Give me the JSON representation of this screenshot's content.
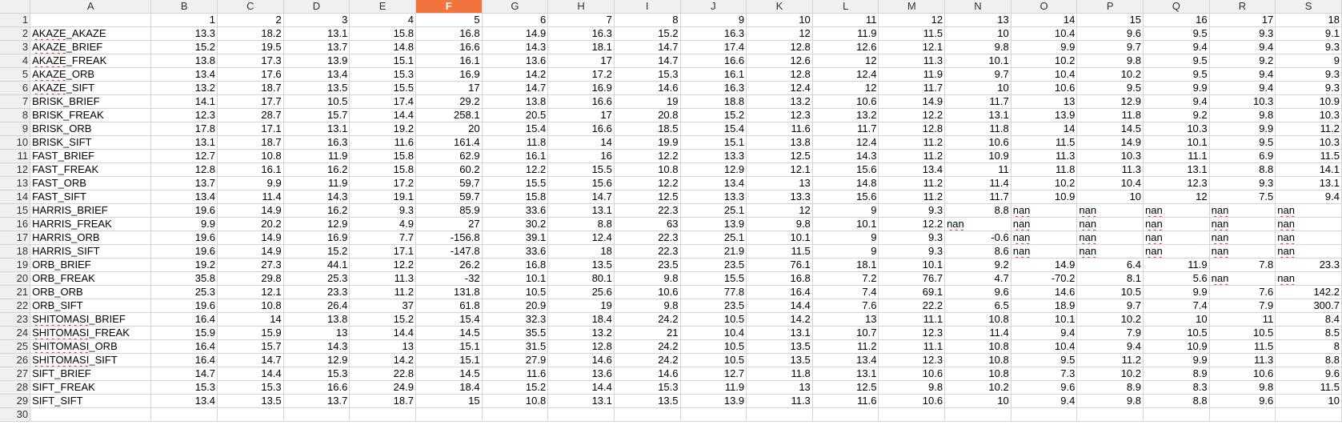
{
  "columns": [
    "A",
    "B",
    "C",
    "D",
    "E",
    "F",
    "G",
    "H",
    "I",
    "J",
    "K",
    "L",
    "M",
    "N",
    "O",
    "P",
    "Q",
    "R",
    "S"
  ],
  "active_column": "F",
  "row_numbers": [
    "1",
    "2",
    "3",
    "4",
    "5",
    "6",
    "7",
    "8",
    "9",
    "10",
    "11",
    "12",
    "13",
    "14",
    "15",
    "16",
    "17",
    "18",
    "19",
    "20",
    "21",
    "22",
    "23",
    "24",
    "25",
    "26",
    "27",
    "28",
    "29",
    "30"
  ],
  "header_row": [
    "",
    "1",
    "2",
    "3",
    "4",
    "5",
    "6",
    "7",
    "8",
    "9",
    "10",
    "11",
    "12",
    "13",
    "14",
    "15",
    "16",
    "17",
    "18"
  ],
  "rows": [
    [
      "AKAZE_AKAZE",
      "13.3",
      "18.2",
      "13.1",
      "15.8",
      "16.8",
      "14.9",
      "16.3",
      "15.2",
      "16.3",
      "12",
      "11.9",
      "11.5",
      "10",
      "10.4",
      "9.6",
      "9.5",
      "9.3",
      "9.1"
    ],
    [
      "AKAZE_BRIEF",
      "15.2",
      "19.5",
      "13.7",
      "14.8",
      "16.6",
      "14.3",
      "18.1",
      "14.7",
      "17.4",
      "12.8",
      "12.6",
      "12.1",
      "9.8",
      "9.9",
      "9.7",
      "9.4",
      "9.4",
      "9.3"
    ],
    [
      "AKAZE_FREAK",
      "13.8",
      "17.3",
      "13.9",
      "15.1",
      "16.1",
      "13.6",
      "17",
      "14.7",
      "16.6",
      "12.6",
      "12",
      "11.3",
      "10.1",
      "10.2",
      "9.8",
      "9.5",
      "9.2",
      "9"
    ],
    [
      "AKAZE_ORB",
      "13.4",
      "17.6",
      "13.4",
      "15.3",
      "16.9",
      "14.2",
      "17.2",
      "15.3",
      "16.1",
      "12.8",
      "12.4",
      "11.9",
      "9.7",
      "10.4",
      "10.2",
      "9.5",
      "9.4",
      "9.3"
    ],
    [
      "AKAZE_SIFT",
      "13.2",
      "18.7",
      "13.5",
      "15.5",
      "17",
      "14.7",
      "16.9",
      "14.6",
      "16.3",
      "12.4",
      "12",
      "11.7",
      "10",
      "10.6",
      "9.5",
      "9.9",
      "9.4",
      "9.3"
    ],
    [
      "BRISK_BRIEF",
      "14.1",
      "17.7",
      "10.5",
      "17.4",
      "29.2",
      "13.8",
      "16.6",
      "19",
      "18.8",
      "13.2",
      "10.6",
      "14.9",
      "11.7",
      "13",
      "12.9",
      "9.4",
      "10.3",
      "10.9"
    ],
    [
      "BRISK_FREAK",
      "12.3",
      "28.7",
      "15.7",
      "14.4",
      "258.1",
      "20.5",
      "17",
      "20.8",
      "15.2",
      "12.3",
      "13.2",
      "12.2",
      "13.1",
      "13.9",
      "11.8",
      "9.2",
      "9.8",
      "10.3"
    ],
    [
      "BRISK_ORB",
      "17.8",
      "17.1",
      "13.1",
      "19.2",
      "20",
      "15.4",
      "16.6",
      "18.5",
      "15.4",
      "11.6",
      "11.7",
      "12.8",
      "11.8",
      "14",
      "14.5",
      "10.3",
      "9.9",
      "11.2"
    ],
    [
      "BRISK_SIFT",
      "13.1",
      "18.7",
      "16.3",
      "11.6",
      "161.4",
      "11.8",
      "14",
      "19.9",
      "15.1",
      "13.8",
      "12.4",
      "11.2",
      "10.6",
      "11.5",
      "14.9",
      "10.1",
      "9.5",
      "10.3"
    ],
    [
      "FAST_BRIEF",
      "12.7",
      "10.8",
      "11.9",
      "15.8",
      "62.9",
      "16.1",
      "16",
      "12.2",
      "13.3",
      "12.5",
      "14.3",
      "11.2",
      "10.9",
      "11.3",
      "10.3",
      "11.1",
      "6.9",
      "11.5"
    ],
    [
      "FAST_FREAK",
      "12.8",
      "16.1",
      "16.2",
      "15.8",
      "60.2",
      "12.2",
      "15.5",
      "10.8",
      "12.9",
      "12.1",
      "15.6",
      "13.4",
      "11",
      "11.8",
      "11.3",
      "13.1",
      "8.8",
      "14.1"
    ],
    [
      "FAST_ORB",
      "13.7",
      "9.9",
      "11.9",
      "17.2",
      "59.7",
      "15.5",
      "15.6",
      "12.2",
      "13.4",
      "13",
      "14.8",
      "11.2",
      "11.4",
      "10.2",
      "10.4",
      "12.3",
      "9.3",
      "13.1"
    ],
    [
      "FAST_SIFT",
      "13.4",
      "11.4",
      "14.3",
      "19.1",
      "59.7",
      "15.8",
      "14.7",
      "12.5",
      "13.3",
      "13.3",
      "15.6",
      "11.2",
      "11.7",
      "10.9",
      "10",
      "12",
      "7.5",
      "9.4"
    ],
    [
      "HARRIS_BRIEF",
      "19.6",
      "14.9",
      "16.2",
      "9.3",
      "85.9",
      "33.6",
      "13.1",
      "22.3",
      "25.1",
      "12",
      "9",
      "9.3",
      "8.8",
      "nan",
      "nan",
      "nan",
      "nan",
      "nan"
    ],
    [
      "HARRIS_FREAK",
      "9.9",
      "20.2",
      "12.9",
      "4.9",
      "27",
      "30.2",
      "8.8",
      "63",
      "13.9",
      "9.8",
      "10.1",
      "12.2",
      "nan",
      "nan",
      "nan",
      "nan",
      "nan",
      "nan"
    ],
    [
      "HARRIS_ORB",
      "19.6",
      "14.9",
      "16.9",
      "7.7",
      "-156.8",
      "39.1",
      "12.4",
      "22.3",
      "25.1",
      "10.1",
      "9",
      "9.3",
      "-0.6",
      "nan",
      "nan",
      "nan",
      "nan",
      "nan"
    ],
    [
      "HARRIS_SIFT",
      "19.6",
      "14.9",
      "15.2",
      "17.1",
      "-147.8",
      "33.6",
      "18",
      "22.3",
      "21.9",
      "11.5",
      "9",
      "9.3",
      "8.6",
      "nan",
      "nan",
      "nan",
      "nan",
      "nan"
    ],
    [
      "ORB_BRIEF",
      "19.2",
      "27.3",
      "44.1",
      "12.2",
      "26.2",
      "16.8",
      "13.5",
      "23.5",
      "23.5",
      "76.1",
      "18.1",
      "10.1",
      "9.2",
      "14.9",
      "6.4",
      "11.9",
      "7.8",
      "23.3"
    ],
    [
      "ORB_FREAK",
      "35.8",
      "29.8",
      "25.3",
      "11.3",
      "-32",
      "10.1",
      "80.1",
      "9.8",
      "15.5",
      "16.8",
      "7.2",
      "76.7",
      "4.7",
      "-70.2",
      "8.1",
      "5.6",
      "nan",
      "nan"
    ],
    [
      "ORB_ORB",
      "25.3",
      "12.1",
      "23.3",
      "11.2",
      "131.8",
      "10.5",
      "25.6",
      "10.6",
      "77.8",
      "16.4",
      "7.4",
      "69.1",
      "9.6",
      "14.6",
      "10.5",
      "9.9",
      "7.6",
      "142.2"
    ],
    [
      "ORB_SIFT",
      "19.6",
      "10.8",
      "26.4",
      "37",
      "61.8",
      "20.9",
      "19",
      "9.8",
      "23.5",
      "14.4",
      "7.6",
      "22.2",
      "6.5",
      "18.9",
      "9.7",
      "7.4",
      "7.9",
      "300.7"
    ],
    [
      "SHITOMASI_BRIEF",
      "16.4",
      "14",
      "13.8",
      "15.2",
      "15.4",
      "32.3",
      "18.4",
      "24.2",
      "10.5",
      "14.2",
      "13",
      "11.1",
      "10.8",
      "10.1",
      "10.2",
      "10",
      "11",
      "8.4"
    ],
    [
      "SHITOMASI_FREAK",
      "15.9",
      "15.9",
      "13",
      "14.4",
      "14.5",
      "35.5",
      "13.2",
      "21",
      "10.4",
      "13.1",
      "10.7",
      "12.3",
      "11.4",
      "9.4",
      "7.9",
      "10.5",
      "10.5",
      "8.5"
    ],
    [
      "SHITOMASI_ORB",
      "16.4",
      "15.7",
      "14.3",
      "13",
      "15.1",
      "31.5",
      "12.8",
      "24.2",
      "10.5",
      "13.5",
      "11.2",
      "11.1",
      "10.8",
      "10.4",
      "9.4",
      "10.9",
      "11.5",
      "8"
    ],
    [
      "SHITOMASI_SIFT",
      "16.4",
      "14.7",
      "12.9",
      "14.2",
      "15.1",
      "27.9",
      "14.6",
      "24.2",
      "10.5",
      "13.5",
      "13.4",
      "12.3",
      "10.8",
      "9.5",
      "11.2",
      "9.9",
      "11.3",
      "8.8"
    ],
    [
      "SIFT_BRIEF",
      "14.7",
      "14.4",
      "15.3",
      "22.8",
      "14.5",
      "11.6",
      "13.6",
      "14.6",
      "12.7",
      "11.8",
      "13.1",
      "10.6",
      "10.8",
      "7.3",
      "10.2",
      "8.9",
      "10.6",
      "9.6"
    ],
    [
      "SIFT_FREAK",
      "15.3",
      "15.3",
      "16.6",
      "24.9",
      "18.4",
      "15.2",
      "14.4",
      "15.3",
      "11.9",
      "13",
      "12.5",
      "9.8",
      "10.2",
      "9.6",
      "8.9",
      "8.3",
      "9.8",
      "11.5"
    ],
    [
      "SIFT_SIFT",
      "13.4",
      "13.5",
      "13.7",
      "18.7",
      "15",
      "10.8",
      "13.1",
      "13.5",
      "13.9",
      "11.3",
      "11.6",
      "10.6",
      "10",
      "9.4",
      "9.8",
      "8.8",
      "9.6",
      "10"
    ]
  ],
  "spellcheck_flagged_prefixes": [
    "AKAZE",
    "SHITOMASI"
  ],
  "colors": {
    "header_bg": "#f0f0f0",
    "active_header": "#f0743c",
    "grid": "#d4d4d4",
    "spell_error": "#e0302e"
  }
}
